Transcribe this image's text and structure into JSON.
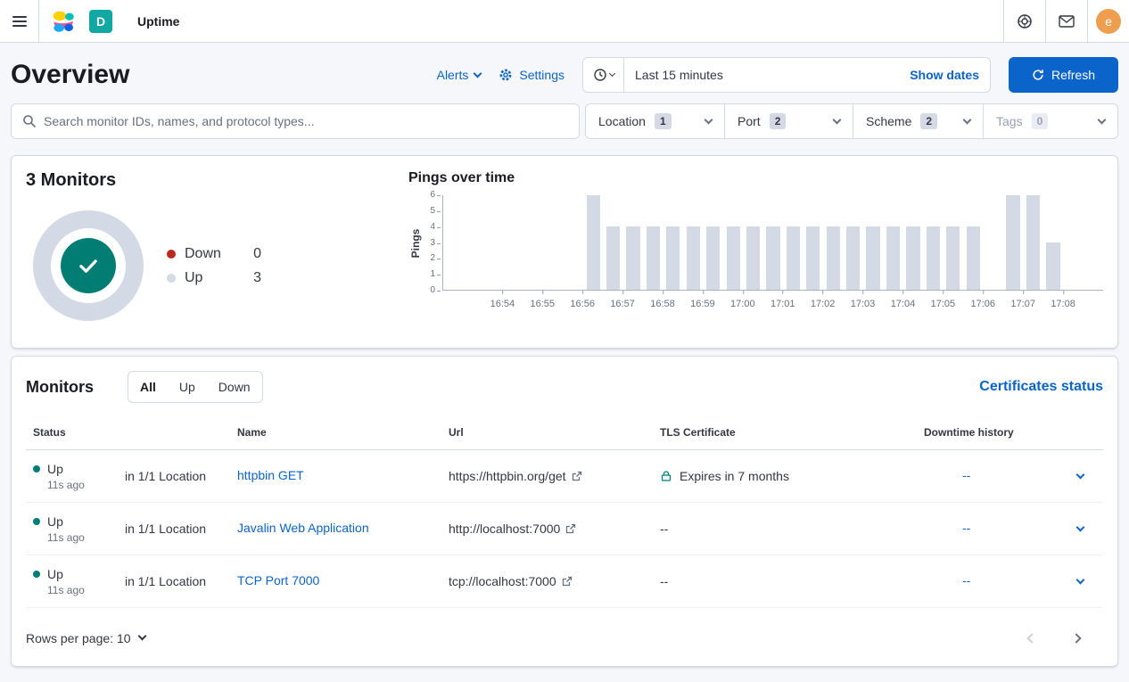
{
  "colors": {
    "primary": "#0b64c9",
    "success": "#017d73",
    "danger": "#bd271e",
    "bar_fill": "#d3dae6",
    "background": "#f5f7fa"
  },
  "topnav": {
    "breadcrumb": "Uptime",
    "space_initial": "D",
    "user_initial": "e"
  },
  "page_header": {
    "title": "Overview",
    "alerts": "Alerts",
    "settings": "Settings",
    "time_value": "Last 15 minutes",
    "show_dates": "Show dates",
    "refresh": "Refresh"
  },
  "search": {
    "placeholder": "Search monitor IDs, names, and protocol types..."
  },
  "filter_dropdowns": [
    {
      "label": "Location",
      "count": "1"
    },
    {
      "label": "Port",
      "count": "2"
    },
    {
      "label": "Scheme",
      "count": "2"
    },
    {
      "label": "Tags",
      "count": "0"
    }
  ],
  "chart_data": [
    {
      "type": "pie",
      "title": "3 Monitors",
      "labels": [
        "Down",
        "Up"
      ],
      "values": [
        0,
        3
      ],
      "colors": [
        "#bd271e",
        "#d3dae6"
      ],
      "center_status": "all-up-check"
    },
    {
      "type": "bar",
      "title": "Pings over time",
      "ylabel": "Pings",
      "ylim": [
        0,
        6
      ],
      "yticks": [
        0,
        1,
        2,
        3,
        4,
        5,
        6
      ],
      "xtick_labels": [
        "16:54",
        "16:55",
        "16:56",
        "16:57",
        "16:58",
        "16:59",
        "17:00",
        "17:01",
        "17:02",
        "17:03",
        "17:04",
        "17:05",
        "17:06",
        "17:07",
        "17:08"
      ],
      "x_domain": [
        "16:52:30",
        "17:09:00"
      ],
      "bucket_seconds": 30,
      "grid": false,
      "bar_color": "#d3dae6",
      "bars": [
        {
          "time": "16:56:00",
          "value": 6
        },
        {
          "time": "16:56:30",
          "value": 4
        },
        {
          "time": "16:57:00",
          "value": 4
        },
        {
          "time": "16:57:30",
          "value": 4
        },
        {
          "time": "16:58:00",
          "value": 4
        },
        {
          "time": "16:58:30",
          "value": 4
        },
        {
          "time": "16:59:00",
          "value": 4
        },
        {
          "time": "16:59:30",
          "value": 4
        },
        {
          "time": "17:00:00",
          "value": 4
        },
        {
          "time": "17:00:30",
          "value": 4
        },
        {
          "time": "17:01:00",
          "value": 4
        },
        {
          "time": "17:01:30",
          "value": 4
        },
        {
          "time": "17:02:00",
          "value": 4
        },
        {
          "time": "17:02:30",
          "value": 4
        },
        {
          "time": "17:03:00",
          "value": 4
        },
        {
          "time": "17:03:30",
          "value": 4
        },
        {
          "time": "17:04:00",
          "value": 4
        },
        {
          "time": "17:04:30",
          "value": 4
        },
        {
          "time": "17:05:00",
          "value": 4
        },
        {
          "time": "17:05:30",
          "value": 4
        },
        {
          "time": "17:06:30",
          "value": 6
        },
        {
          "time": "17:07:00",
          "value": 6
        },
        {
          "time": "17:07:30",
          "value": 3
        }
      ]
    }
  ],
  "monitors": {
    "title": "Monitors",
    "filter_tabs": [
      {
        "label": "All",
        "active": true
      },
      {
        "label": "Up",
        "active": false
      },
      {
        "label": "Down",
        "active": false
      }
    ],
    "certificates_link": "Certificates status",
    "columns": [
      "Status",
      "Name",
      "Url",
      "TLS Certificate",
      "Downtime history"
    ],
    "rows": [
      {
        "status": "Up",
        "checked": "11s ago",
        "location": "in 1/1 Location",
        "name": "httpbin GET",
        "url": "https://httpbin.org/get",
        "tls": "Expires in 7 months",
        "downtime": "--"
      },
      {
        "status": "Up",
        "checked": "11s ago",
        "location": "in 1/1 Location",
        "name": "Javalin Web Application",
        "url": "http://localhost:7000",
        "tls": "--",
        "downtime": "--"
      },
      {
        "status": "Up",
        "checked": "11s ago",
        "location": "in 1/1 Location",
        "name": "TCP Port 7000",
        "url": "tcp://localhost:7000",
        "tls": "--",
        "downtime": "--"
      }
    ],
    "rows_per_page": "Rows per page: 10"
  }
}
